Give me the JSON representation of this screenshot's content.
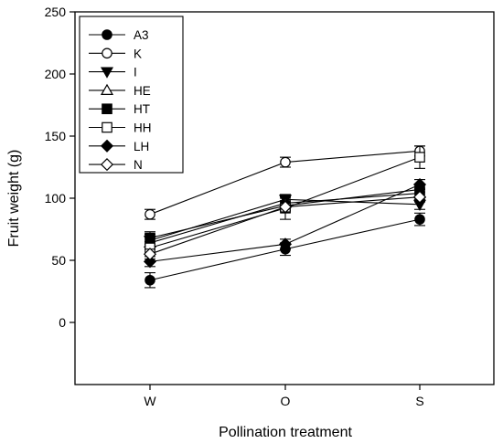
{
  "chart_data": {
    "type": "line",
    "title": "",
    "xlabel": "Pollination treatment",
    "ylabel": "Fruit weight (g)",
    "categories": [
      "W",
      "O",
      "S"
    ],
    "ylim": [
      -50,
      250
    ],
    "yticks": [
      0,
      50,
      100,
      150,
      200,
      250
    ],
    "grid": false,
    "legend": "top-left",
    "error_bars": true,
    "series": [
      {
        "name": "A3",
        "marker": "filled-circle",
        "values": [
          34,
          59,
          83
        ],
        "errors": [
          6,
          5,
          5
        ]
      },
      {
        "name": "K",
        "marker": "open-circle",
        "values": [
          87,
          129,
          138
        ],
        "errors": [
          4,
          4,
          4
        ]
      },
      {
        "name": "I",
        "marker": "filled-triangle-down",
        "values": [
          66,
          99,
          95
        ],
        "errors": [
          5,
          4,
          4
        ]
      },
      {
        "name": "HE",
        "marker": "open-triangle-up",
        "values": [
          64,
          96,
          104
        ],
        "errors": [
          5,
          4,
          4
        ]
      },
      {
        "name": "HT",
        "marker": "filled-square",
        "values": [
          68,
          94,
          107
        ],
        "errors": [
          5,
          4,
          4
        ]
      },
      {
        "name": "HH",
        "marker": "open-square",
        "values": [
          60,
          92,
          133
        ],
        "errors": [
          5,
          9,
          9
        ]
      },
      {
        "name": "LH",
        "marker": "filled-diamond",
        "values": [
          49,
          63,
          111
        ],
        "errors": [
          4,
          4,
          4
        ]
      },
      {
        "name": "N",
        "marker": "open-diamond",
        "values": [
          55,
          93,
          101
        ],
        "errors": [
          4,
          4,
          4
        ]
      }
    ]
  }
}
